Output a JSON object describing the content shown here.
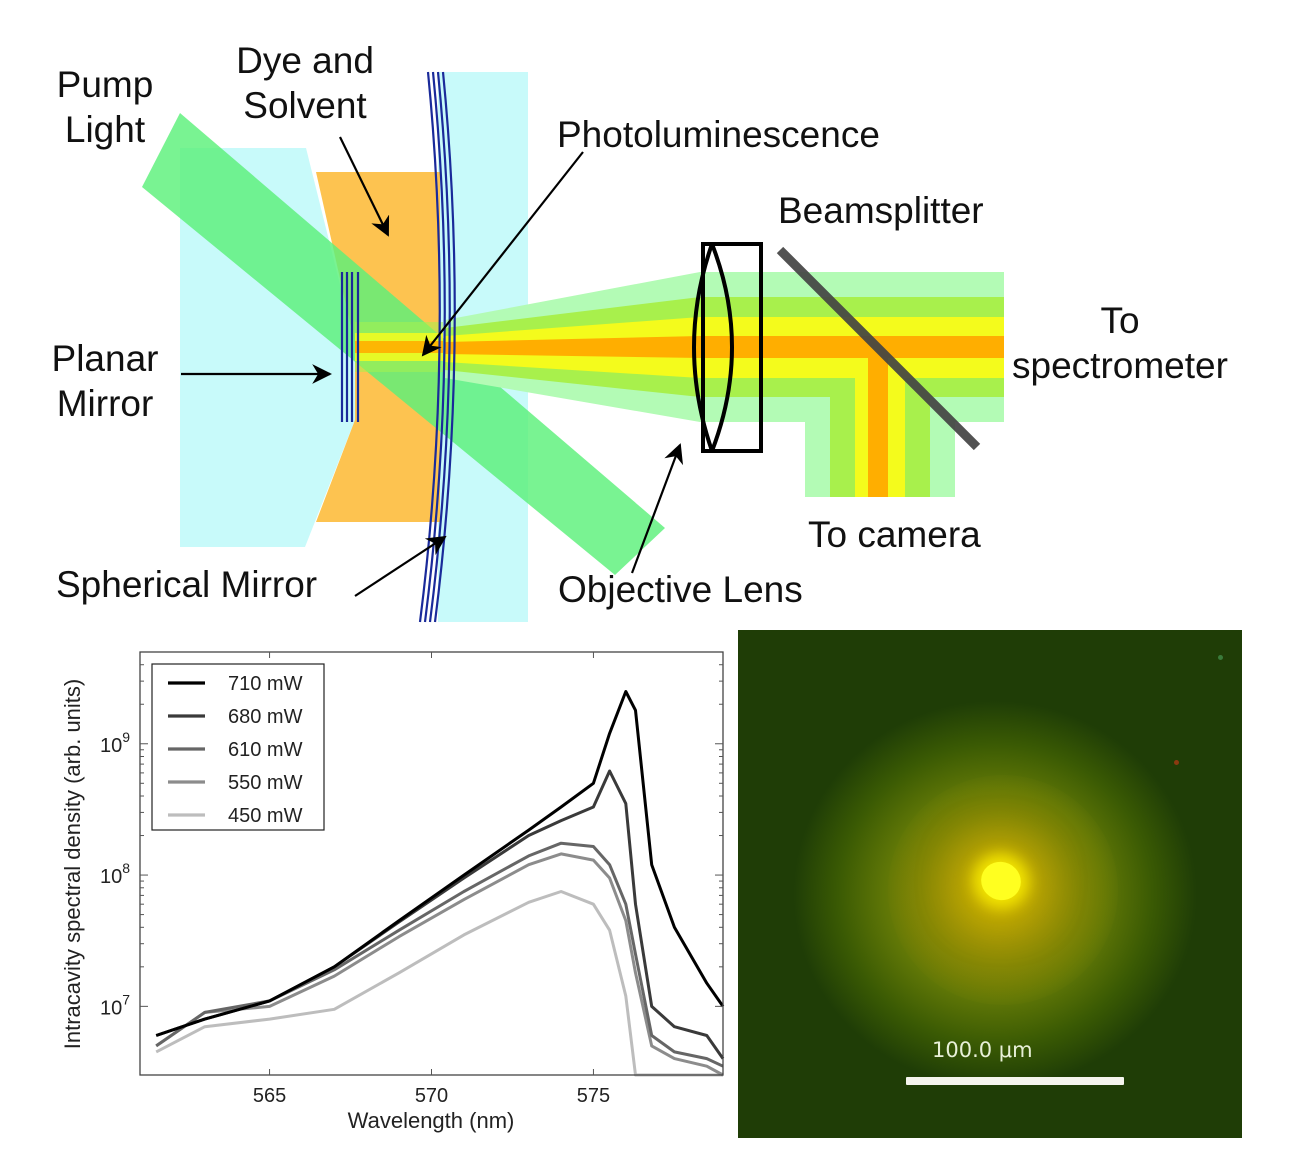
{
  "diagram": {
    "labels": {
      "pump_light": [
        "Pump",
        "Light"
      ],
      "dye_solvent": [
        "Dye and",
        "Solvent"
      ],
      "photoluminescence": "Photoluminescence",
      "beamsplitter": "Beamsplitter",
      "to_spectrometer": [
        "To",
        "spectrometer"
      ],
      "planar_mirror": [
        "Planar",
        "Mirror"
      ],
      "spherical_mirror": "Spherical Mirror",
      "objective_lens": "Objective Lens",
      "to_camera": "To camera"
    },
    "colors": {
      "substrate": "#c8fafa",
      "dye": "#fdc350",
      "pump_beam": "#5cf07a",
      "mirror_lines": "#1a2a9a",
      "beam_outer": "#b3fbb5",
      "beam_mid": "#a8f04c",
      "beam_inner": "#f4fb1c",
      "beam_core": "#ffae00",
      "beamsplitter": "#444444"
    }
  },
  "chart_data": {
    "type": "line",
    "title": "",
    "xlabel": "Wavelength (nm)",
    "ylabel": "Intracavity spectral density (arb. units)",
    "xlim": [
      561,
      579
    ],
    "ylim": [
      3000000,
      5000000000
    ],
    "yscale": "log",
    "grid": false,
    "legend_position": "upper left",
    "x_ticks": [
      565,
      570,
      575
    ],
    "x_tick_labels": [
      "565",
      "570",
      "575"
    ],
    "y_ticks": [
      10000000,
      100000000,
      1000000000
    ],
    "y_tick_labels": [
      "10^7",
      "10^8",
      "10^9"
    ],
    "x": [
      561.5,
      563,
      565,
      567,
      569,
      571,
      573,
      574,
      575,
      575.5,
      576,
      576.3,
      576.8,
      577.5,
      578.5,
      579
    ],
    "series": [
      {
        "name": "710 mW",
        "color": "#000000",
        "values": [
          6000000,
          8000000,
          11000000,
          20000000,
          45000000,
          100000000,
          220000000,
          330000000,
          500000000,
          1200000000,
          2500000000,
          1800000000,
          120000000,
          40000000,
          15000000,
          10000000
        ]
      },
      {
        "name": "680 mW",
        "color": "#3a3a3a",
        "values": [
          6000000,
          8000000,
          11000000,
          20000000,
          44000000,
          95000000,
          200000000,
          260000000,
          330000000,
          620000000,
          350000000,
          60000000,
          10000000,
          7000000,
          6000000,
          4000000
        ]
      },
      {
        "name": "610 mW",
        "color": "#666666",
        "values": [
          5000000,
          9000000,
          11000000,
          19000000,
          38000000,
          75000000,
          140000000,
          175000000,
          165000000,
          120000000,
          60000000,
          25000000,
          6000000,
          4500000,
          4000000,
          3500000
        ]
      },
      {
        "name": "550 mW",
        "color": "#8c8c8c",
        "values": [
          5000000,
          9000000,
          10000000,
          17000000,
          34000000,
          65000000,
          120000000,
          145000000,
          130000000,
          95000000,
          45000000,
          18000000,
          5000000,
          4000000,
          3500000,
          3000000
        ]
      },
      {
        "name": "450 mW",
        "color": "#bdbdbd",
        "values": [
          4500000,
          7000000,
          8000000,
          9500000,
          18000000,
          35000000,
          62000000,
          75000000,
          60000000,
          38000000,
          12000000,
          3000000,
          3000000,
          3000000,
          3000000,
          3000000
        ]
      }
    ]
  },
  "micrograph": {
    "scale_bar_label": "100.0 μm",
    "colors": {
      "background": "#1f3d06",
      "glow": "#8f8a07",
      "core": "#ffff20",
      "scale_bar": "#f5f5ee"
    }
  }
}
